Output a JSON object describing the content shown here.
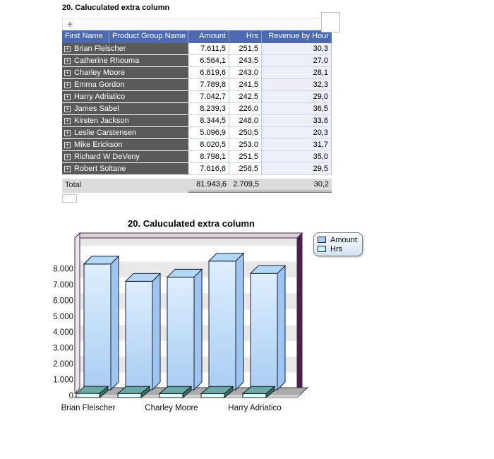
{
  "grid": {
    "title": "20. Caluculated extra column",
    "toolbar": {
      "add_label": "+"
    },
    "columns": [
      "First Name",
      "Product Group Name",
      "Amount",
      "Hrs",
      "Revenue by Hour"
    ],
    "rows": [
      {
        "name": "Brian Fleischer",
        "amount": "7.611,5",
        "hrs": "251,5",
        "revenue": "30,3"
      },
      {
        "name": "Catherine Rhouma",
        "amount": "6.564,1",
        "hrs": "243,5",
        "revenue": "27,0"
      },
      {
        "name": "Charley Moore",
        "amount": "6.819,6",
        "hrs": "243,0",
        "revenue": "28,1"
      },
      {
        "name": "Emma Gordon",
        "amount": "7.789,8",
        "hrs": "241,5",
        "revenue": "32,3"
      },
      {
        "name": "Harry Adriatico",
        "amount": "7.042,7",
        "hrs": "242,5",
        "revenue": "29,0"
      },
      {
        "name": "James Sabel",
        "amount": "8.239,3",
        "hrs": "226,0",
        "revenue": "36,5"
      },
      {
        "name": "Kirsten Jackson",
        "amount": "8.344,5",
        "hrs": "248,0",
        "revenue": "33,6"
      },
      {
        "name": "Leslie Carstensen",
        "amount": "5.096,9",
        "hrs": "250,5",
        "revenue": "20,3"
      },
      {
        "name": "Mike Erickson",
        "amount": "8.020,5",
        "hrs": "253,0",
        "revenue": "31,7"
      },
      {
        "name": "Richard W DeVeny",
        "amount": "8.798,1",
        "hrs": "251,5",
        "revenue": "35,0"
      },
      {
        "name": "Robert Soltane",
        "amount": "7.616,6",
        "hrs": "258,5",
        "revenue": "29,5"
      }
    ],
    "total": {
      "label": "Total",
      "amount": "81.943,6",
      "hrs": "2.709,5",
      "revenue": "30,2"
    }
  },
  "chart": {
    "title": "20. Caluculated extra column",
    "legend": [
      {
        "label": "Amount",
        "color": "#a9cdf0"
      },
      {
        "label": "Hrs",
        "color": "#cdf7f9"
      }
    ]
  },
  "chart_data": {
    "type": "bar",
    "style": "3d-column",
    "title": "20. Caluculated extra column",
    "categories": [
      "Brian Fleischer",
      "Catherine Rhouma",
      "Charley Moore",
      "Emma Gordon",
      "Harry Adriatico"
    ],
    "series": [
      {
        "name": "Amount",
        "color": "#a9cdf0",
        "values": [
          7611.5,
          6564.1,
          6819.6,
          7789.8,
          7042.7
        ]
      },
      {
        "name": "Hrs",
        "color": "#cdf7f9",
        "values": [
          251.5,
          243.5,
          243.0,
          241.5,
          242.5
        ]
      }
    ],
    "ylim": [
      0,
      9800
    ],
    "yticks": [
      0,
      1000,
      2000,
      3000,
      4000,
      5000,
      6000,
      7000,
      8000
    ],
    "ytick_labels": [
      "0",
      "1.000",
      "2.000",
      "3.000",
      "4.000",
      "5.000",
      "6.000",
      "7.000",
      "8.000"
    ],
    "xtick_labels_shown": [
      "Brian Fleischer",
      "Charley Moore",
      "Harry Adriatico"
    ],
    "legend_position": "top-right",
    "grid": "horizontal-bands",
    "colors": {
      "wall_frame": "#512451",
      "right_wall": "#4a2048",
      "floor": "#ababab",
      "band_gray": "#e8e8e8"
    }
  }
}
